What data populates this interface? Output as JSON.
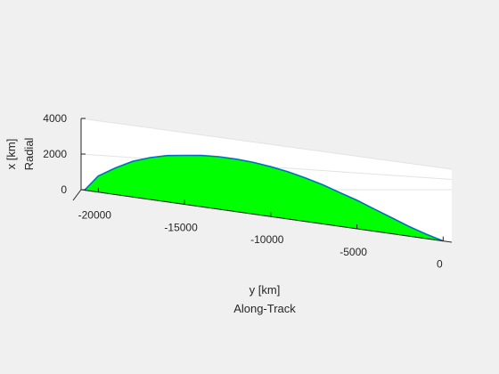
{
  "chart_data": {
    "type": "area",
    "view": "3d",
    "xlabel": "y [km]",
    "xlabel_sub": "Along-Track",
    "ylabel": "x [km]",
    "ylabel_sub": "Radial",
    "x_ticks": [
      -20000,
      -15000,
      -10000,
      -5000,
      0
    ],
    "y_ticks": [
      0,
      2000,
      4000
    ],
    "xlim": [
      -21000,
      500
    ],
    "ylim": [
      0,
      4000
    ],
    "fill_color": "#00ff00",
    "edge_color": "#0072bd",
    "grid": true,
    "series": [
      {
        "x": [
          -20800,
          -20000,
          -19000,
          -18000,
          -17000,
          -16000,
          -15000,
          -14000,
          -13000,
          -12000,
          -11000,
          -10000,
          -9000,
          -8000,
          -7000,
          -6000,
          -5000,
          -4000,
          -3000,
          -2000,
          -1000,
          0
        ],
        "values": [
          0,
          900,
          1500,
          2000,
          2350,
          2600,
          2750,
          2880,
          2950,
          2950,
          2900,
          2800,
          2650,
          2450,
          2200,
          1900,
          1600,
          1250,
          900,
          550,
          250,
          0
        ]
      }
    ]
  }
}
